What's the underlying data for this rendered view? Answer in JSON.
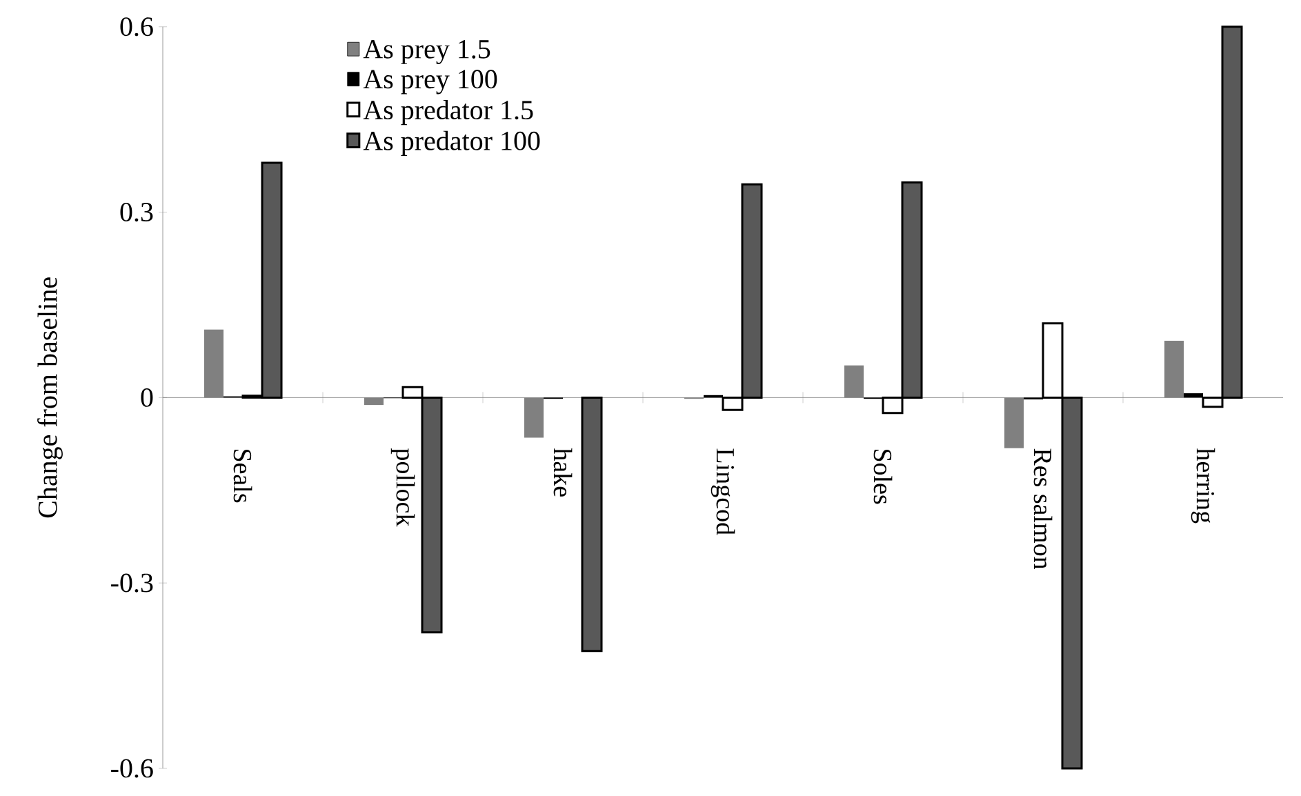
{
  "chart_data": {
    "type": "bar",
    "ylabel": "Change from baseline",
    "categories": [
      "Seals",
      "pollock",
      "hake",
      "Lingcod",
      "Soles",
      "Res salmon",
      "herring"
    ],
    "series": [
      {
        "name": "As prey 1.5",
        "color": "#808080",
        "values": [
          0.11,
          -0.012,
          -0.065,
          -0.002,
          0.052,
          -0.082,
          0.092
        ]
      },
      {
        "name": "As prey 100",
        "color": "#000000",
        "values": [
          0.002,
          -0.001,
          -0.002,
          0.004,
          -0.002,
          -0.003,
          0.007
        ]
      },
      {
        "name": "As predator 1.5",
        "color": "#ffffff",
        "values": [
          0.003,
          0.017,
          null,
          -0.02,
          -0.025,
          0.12,
          -0.015
        ]
      },
      {
        "name": "As predator 100",
        "color": "#595959",
        "values": [
          0.38,
          -0.38,
          -0.41,
          0.345,
          0.348,
          -0.6,
          0.6
        ]
      }
    ],
    "ylim": [
      -0.6,
      0.6
    ],
    "yticks": [
      {
        "value": -0.6,
        "label": "-0.6"
      },
      {
        "value": -0.3,
        "label": "-0.3"
      },
      {
        "value": 0,
        "label": "0"
      },
      {
        "value": 0.3,
        "label": "0.3"
      },
      {
        "value": 0.6,
        "label": "0.6"
      }
    ],
    "legend": "top left"
  }
}
